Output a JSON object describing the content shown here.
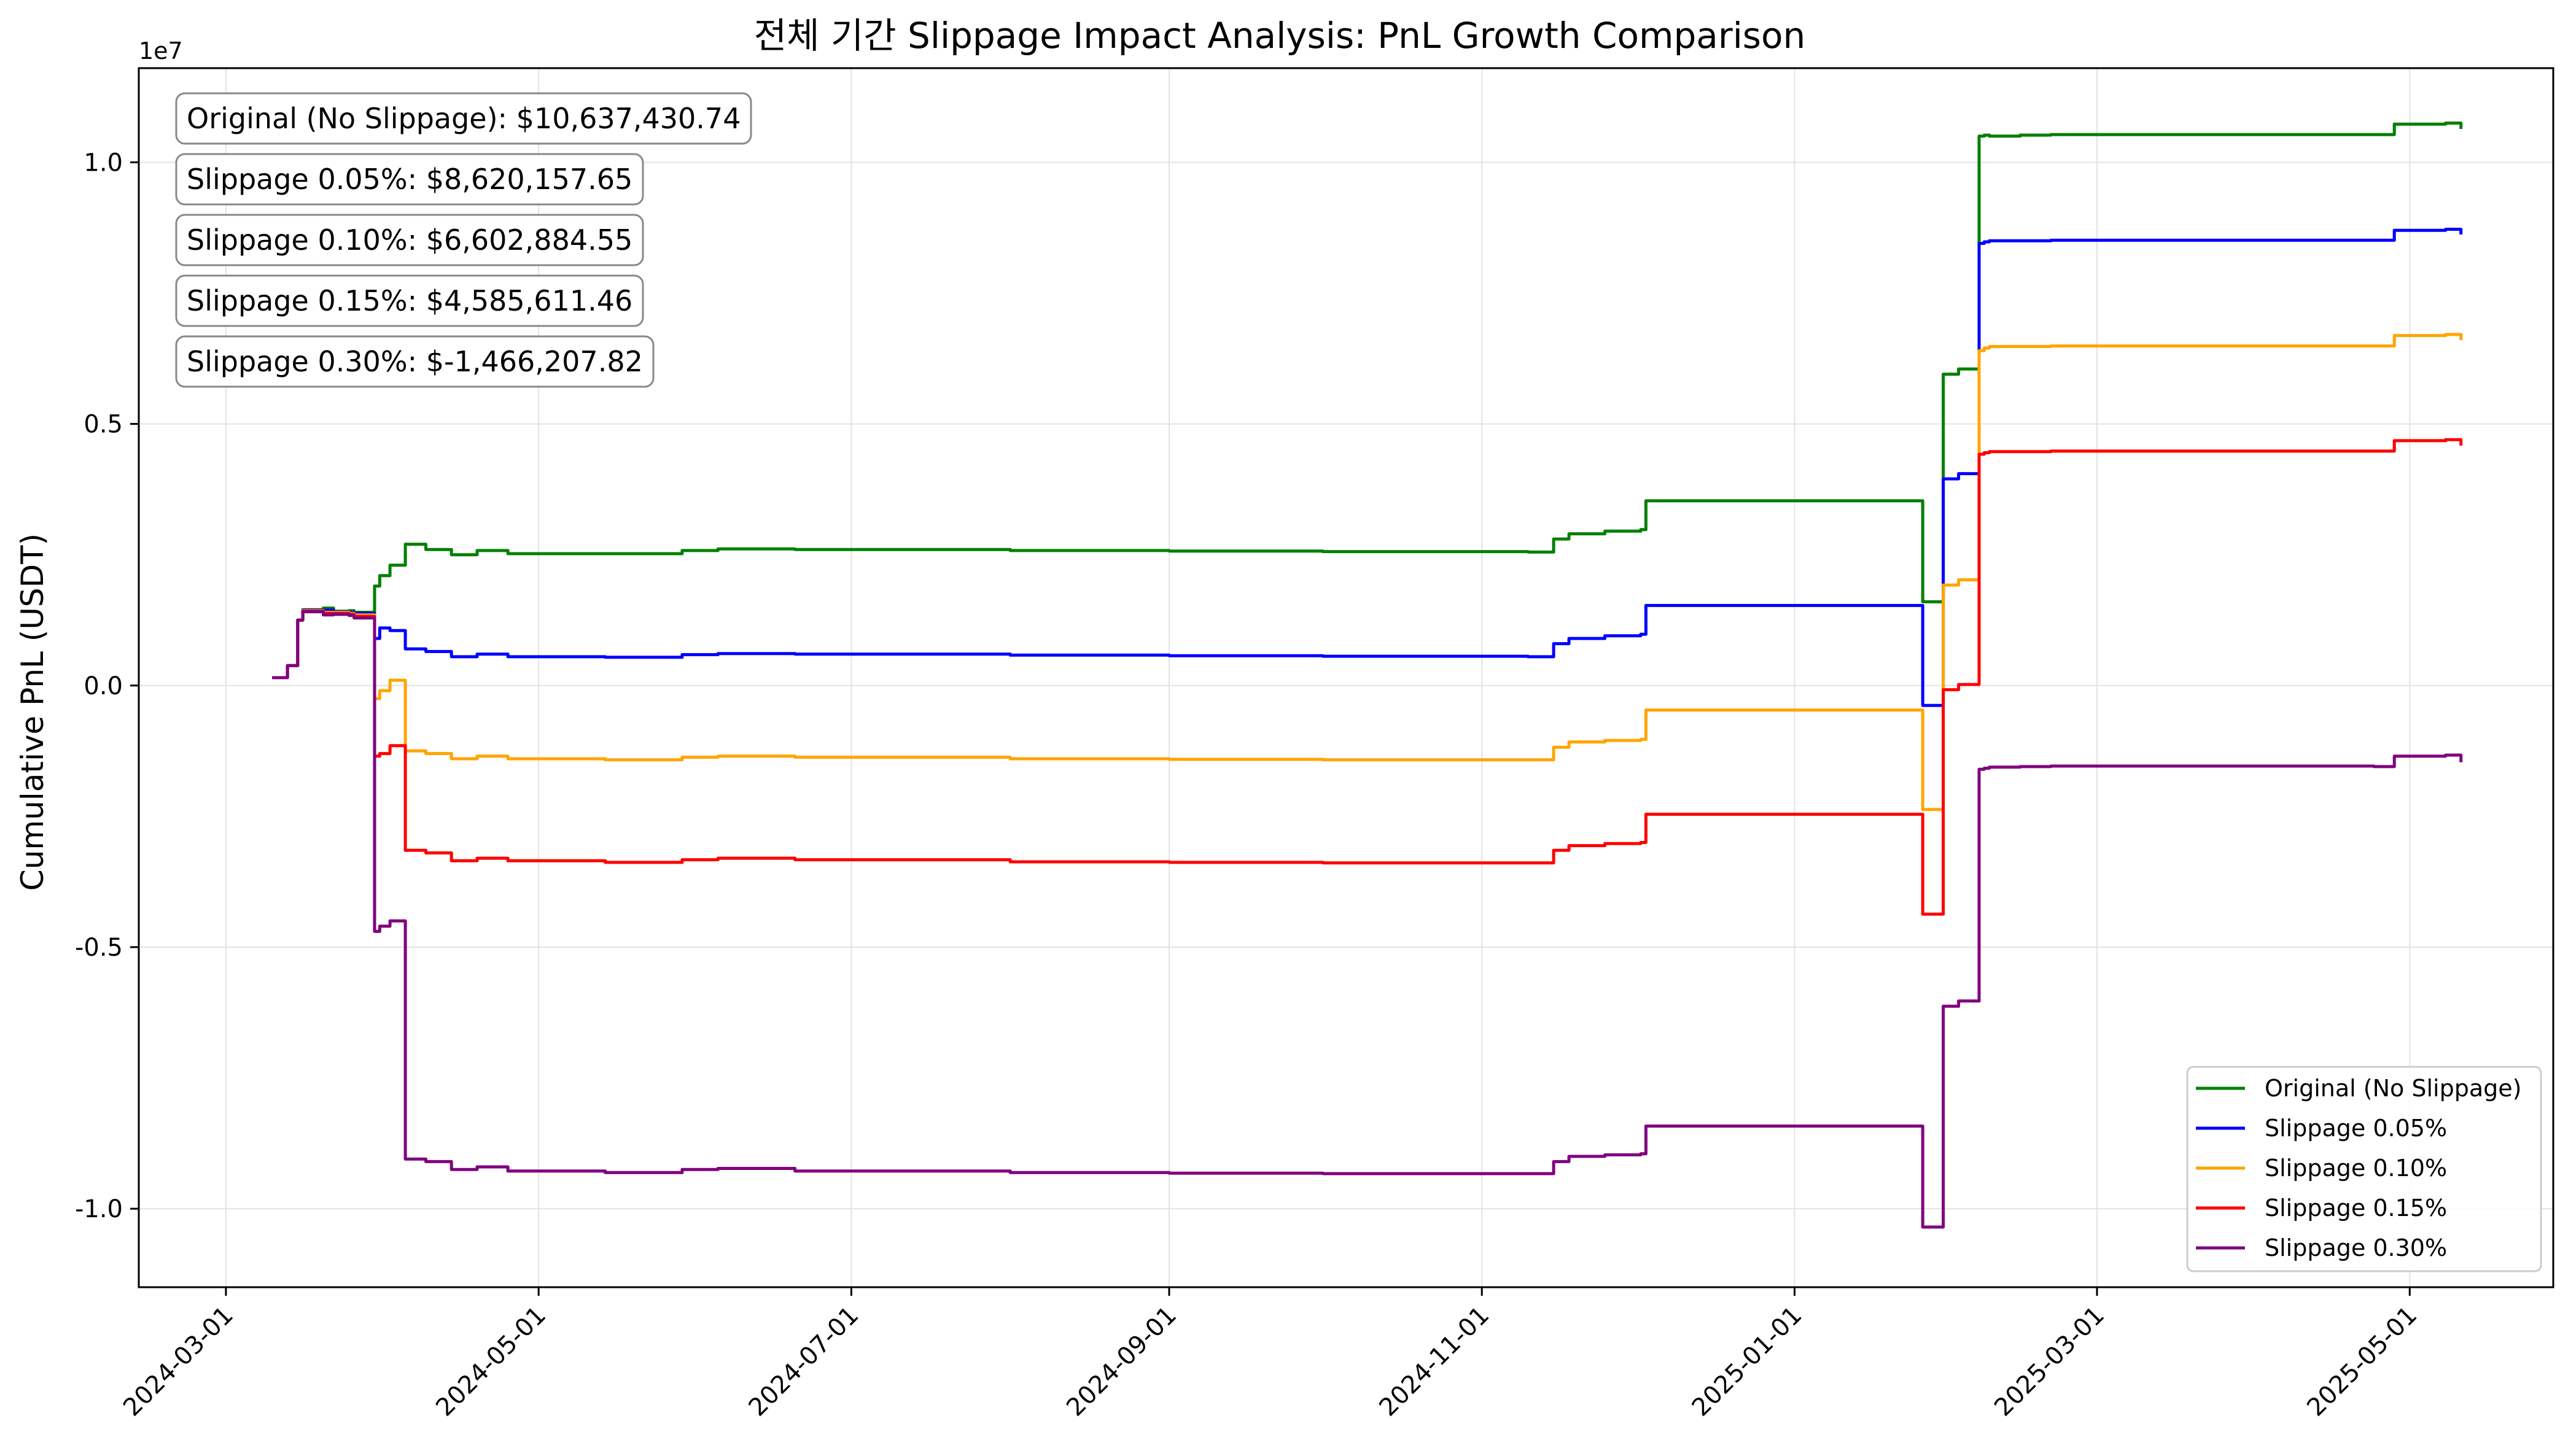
{
  "chart_data": {
    "type": "line",
    "title": "전체 기간 Slippage Impact Analysis: PnL Growth Comparison",
    "xlabel": "",
    "ylabel": "Cumulative PnL (USDT)",
    "y_offset_label": "1e7",
    "y_scale": 10000000,
    "xlim": [
      "2024-02-13",
      "2025-05-29"
    ],
    "ylim": [
      -11500000,
      11800000
    ],
    "grid": true,
    "legend_position": "lower-right",
    "x_ticks": [
      "2024-03-01",
      "2024-05-01",
      "2024-07-01",
      "2024-09-01",
      "2024-11-01",
      "2025-01-01",
      "2025-03-01",
      "2025-05-01"
    ],
    "y_ticks": [
      -10000000,
      -5000000,
      0,
      5000000,
      10000000
    ],
    "y_tick_labels": [
      "-1.0",
      "-0.5",
      "0.0",
      "0.5",
      "1.0"
    ],
    "x": [
      "2024-03-10",
      "2024-03-13",
      "2024-03-15",
      "2024-03-16",
      "2024-03-20",
      "2024-03-22",
      "2024-03-25",
      "2024-03-26",
      "2024-03-30",
      "2024-03-31",
      "2024-04-02",
      "2024-04-05",
      "2024-04-09",
      "2024-04-14",
      "2024-04-19",
      "2024-04-25",
      "2024-05-14",
      "2024-05-29",
      "2024-06-05",
      "2024-06-20",
      "2024-08-01",
      "2024-09-01",
      "2024-10-01",
      "2024-11-10",
      "2024-11-15",
      "2024-11-18",
      "2024-11-25",
      "2024-12-02",
      "2024-12-03",
      "2025-01-25",
      "2025-01-26",
      "2025-01-29",
      "2025-01-30",
      "2025-02-02",
      "2025-02-06",
      "2025-02-07",
      "2025-02-08",
      "2025-02-12",
      "2025-02-14",
      "2025-02-20",
      "2025-04-24",
      "2025-04-28",
      "2025-05-08",
      "2025-05-11"
    ],
    "series": [
      {
        "name": "Original (No Slippage)",
        "color": "#008000",
        "values": [
          150000,
          380000,
          1250000,
          1450000,
          1480000,
          1420000,
          1430000,
          1400000,
          1900000,
          2100000,
          2300000,
          2700000,
          2600000,
          2500000,
          2580000,
          2520000,
          2520000,
          2580000,
          2610000,
          2600000,
          2580000,
          2570000,
          2560000,
          2550000,
          2800000,
          2900000,
          2950000,
          2980000,
          3530000,
          3530000,
          1600000,
          1600000,
          5950000,
          6050000,
          10500000,
          10520000,
          10500000,
          10500000,
          10520000,
          10530000,
          10530000,
          10730000,
          10750000,
          10637430
        ]
      },
      {
        "name": "Slippage 0.05%",
        "color": "#0000ff",
        "values": [
          150000,
          380000,
          1250000,
          1440000,
          1440000,
          1410000,
          1400000,
          1380000,
          900000,
          1100000,
          1050000,
          700000,
          650000,
          550000,
          600000,
          550000,
          540000,
          590000,
          610000,
          600000,
          580000,
          570000,
          560000,
          550000,
          800000,
          900000,
          950000,
          980000,
          1530000,
          1530000,
          -380000,
          -380000,
          3950000,
          4050000,
          8450000,
          8480000,
          8500000,
          8500000,
          8500000,
          8510000,
          8510000,
          8700000,
          8720000,
          8620157
        ]
      },
      {
        "name": "Slippage 0.10%",
        "color": "#ffa500",
        "values": [
          150000,
          380000,
          1250000,
          1430000,
          1400000,
          1400000,
          1380000,
          1350000,
          -250000,
          -100000,
          100000,
          -1250000,
          -1300000,
          -1400000,
          -1350000,
          -1400000,
          -1420000,
          -1370000,
          -1350000,
          -1370000,
          -1400000,
          -1410000,
          -1420000,
          -1420000,
          -1180000,
          -1080000,
          -1050000,
          -1030000,
          -470000,
          -470000,
          -2370000,
          -2370000,
          1920000,
          2020000,
          6400000,
          6450000,
          6480000,
          6480000,
          6480000,
          6490000,
          6490000,
          6690000,
          6710000,
          6602884
        ]
      },
      {
        "name": "Slippage 0.15%",
        "color": "#ff0000",
        "values": [
          150000,
          380000,
          1250000,
          1420000,
          1380000,
          1380000,
          1360000,
          1320000,
          -1350000,
          -1300000,
          -1150000,
          -3150000,
          -3200000,
          -3350000,
          -3300000,
          -3350000,
          -3380000,
          -3330000,
          -3300000,
          -3330000,
          -3370000,
          -3380000,
          -3390000,
          -3390000,
          -3150000,
          -3060000,
          -3020000,
          -3000000,
          -2460000,
          -2460000,
          -4370000,
          -4370000,
          -80000,
          20000,
          4420000,
          4450000,
          4470000,
          4470000,
          4470000,
          4480000,
          4480000,
          4680000,
          4700000,
          4585611
        ]
      },
      {
        "name": "Slippage 0.30%",
        "color": "#800080",
        "values": [
          150000,
          380000,
          1250000,
          1410000,
          1350000,
          1360000,
          1340000,
          1290000,
          -4700000,
          -4600000,
          -4500000,
          -9050000,
          -9100000,
          -9250000,
          -9200000,
          -9280000,
          -9310000,
          -9250000,
          -9230000,
          -9280000,
          -9310000,
          -9320000,
          -9330000,
          -9330000,
          -9100000,
          -9000000,
          -8970000,
          -8950000,
          -8420000,
          -8420000,
          -10350000,
          -10350000,
          -6130000,
          -6030000,
          -1600000,
          -1580000,
          -1560000,
          -1560000,
          -1550000,
          -1540000,
          -1550000,
          -1350000,
          -1330000,
          -1466207
        ]
      }
    ],
    "annotations": [
      "Original (No Slippage): $10,637,430.74",
      "Slippage 0.05%: $8,620,157.65",
      "Slippage 0.10%: $6,602,884.55",
      "Slippage 0.15%: $4,585,611.46",
      "Slippage 0.30%: $-1,466,207.82"
    ]
  }
}
